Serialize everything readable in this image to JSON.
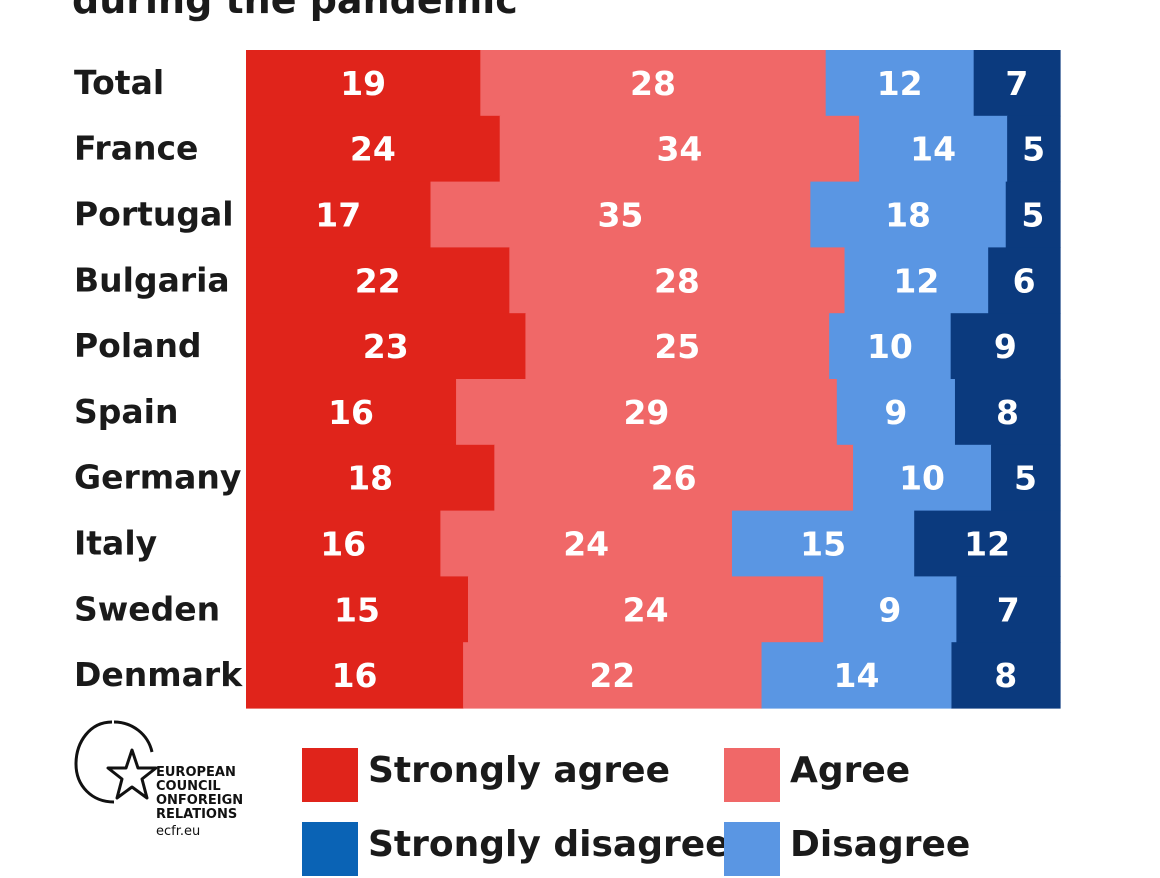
{
  "title": "during the pandemic",
  "colors": {
    "strongly_agree": "#e0241b",
    "agree": "#f06868",
    "disagree": "#5a96e3",
    "strongly_disagree": "#0b3a7e",
    "legend_strongly_disagree": "#0a63b5"
  },
  "chart_data": {
    "type": "bar",
    "stacked": "horizontal",
    "categories": [
      "Total",
      "France",
      "Portugal",
      "Bulgaria",
      "Poland",
      "Spain",
      "Germany",
      "Italy",
      "Sweden",
      "Denmark"
    ],
    "series": [
      {
        "name": "Strongly agree",
        "values": [
          19,
          24,
          17,
          22,
          23,
          16,
          18,
          16,
          15,
          16
        ]
      },
      {
        "name": "Agree",
        "values": [
          28,
          34,
          35,
          28,
          25,
          29,
          26,
          24,
          24,
          22
        ]
      },
      {
        "name": "Disagree",
        "values": [
          12,
          14,
          18,
          12,
          10,
          9,
          10,
          15,
          9,
          14
        ]
      },
      {
        "name": "Strongly disagree",
        "values": [
          7,
          5,
          5,
          6,
          9,
          8,
          5,
          12,
          7,
          8
        ]
      }
    ]
  },
  "legend": {
    "strongly_agree": "Strongly agree",
    "agree": "Agree",
    "strongly_disagree": "Strongly disagree",
    "disagree": "Disagree"
  },
  "logo": {
    "line1": "EUROPEAN",
    "line2": "COUNCIL",
    "line3": "ONFOREIGN",
    "line4": "RELATIONS",
    "url": "ecfr.eu"
  }
}
